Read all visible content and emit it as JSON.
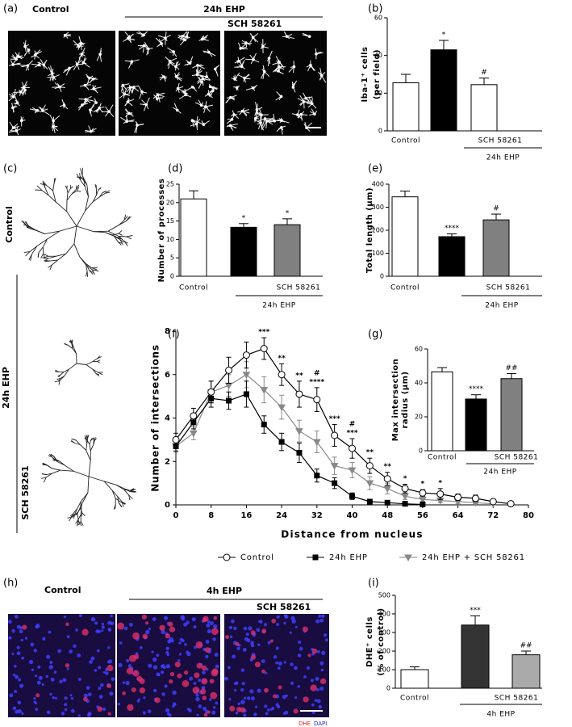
{
  "figure": {
    "a": {
      "label": "(a)",
      "control": "Control",
      "treatment": "24h EHP",
      "drug": "SCH 58261"
    },
    "c": {
      "label": "(c)",
      "control": "Control",
      "treatment": "24h EHP",
      "drug": "SCH 58261"
    },
    "h": {
      "label": "(h)",
      "control": "Control",
      "treatment": "4h EHP",
      "drug": "SCH 58261",
      "stain1": "DHE",
      "stain2": "DAPI"
    }
  },
  "chart_data": [
    {
      "type": "bar",
      "panel": "(b)",
      "y_label": [
        "Iba-1⁺ cells",
        "(per field)"
      ],
      "categories": [
        "Control",
        null,
        "SCH 58261"
      ],
      "group_label": "24h EHP",
      "values": [
        25.5,
        43,
        24.5
      ],
      "errors": [
        4.5,
        5,
        3.5
      ],
      "annotations": [
        null,
        "*",
        "#"
      ],
      "colors": [
        "#ffffff",
        "#000000",
        "#ffffff"
      ],
      "ylim": [
        0,
        60
      ],
      "yticks": [
        0,
        20,
        40,
        60
      ]
    },
    {
      "type": "bar",
      "panel": "(d)",
      "y_label": [
        "Number of processes"
      ],
      "categories": [
        "Control",
        null,
        "SCH 58261"
      ],
      "group_label": "24h EHP",
      "values": [
        21,
        13.3,
        14
      ],
      "errors": [
        2.2,
        1,
        1.6
      ],
      "annotations": [
        null,
        "*",
        "*"
      ],
      "colors": [
        "#ffffff",
        "#000000",
        "#808080"
      ],
      "ylim": [
        0,
        25
      ],
      "yticks": [
        0,
        5,
        10,
        15,
        20,
        25
      ]
    },
    {
      "type": "bar",
      "panel": "(e)",
      "y_label": [
        "Total length (μm)"
      ],
      "categories": [
        "Control",
        null,
        "SCH 58261"
      ],
      "group_label": "24h EHP",
      "values": [
        345,
        172,
        245
      ],
      "errors": [
        25,
        12,
        25
      ],
      "annotations": [
        null,
        "****",
        "#"
      ],
      "colors": [
        "#ffffff",
        "#000000",
        "#808080"
      ],
      "ylim": [
        0,
        400
      ],
      "yticks": [
        0,
        100,
        200,
        300,
        400
      ]
    },
    {
      "type": "line",
      "panel": "(f)",
      "y_label": "Number of intersections",
      "x_label": "Distance from nucleus",
      "x": [
        0,
        4,
        8,
        12,
        16,
        20,
        24,
        28,
        32,
        36,
        40,
        44,
        48,
        52,
        56,
        60,
        64,
        68,
        72,
        76
      ],
      "series": [
        {
          "name": "Control",
          "color": "#000000",
          "marker": "circle",
          "marker_fill": "#ffffff",
          "values": [
            3.0,
            4.1,
            5.2,
            6.2,
            6.9,
            7.2,
            6.0,
            5.1,
            4.85,
            3.2,
            2.6,
            1.8,
            1.2,
            0.75,
            0.55,
            0.5,
            0.35,
            0.3,
            0.15,
            0.05
          ],
          "errors": [
            0.3,
            0.35,
            0.5,
            0.6,
            0.6,
            0.5,
            0.5,
            0.6,
            0.55,
            0.5,
            0.45,
            0.35,
            0.3,
            0.2,
            0.15,
            0.25,
            0.15,
            0.15,
            0.1,
            0.05
          ]
        },
        {
          "name": "24h EHP",
          "color": "#000000",
          "marker": "square",
          "marker_fill": "#000000",
          "values": [
            2.7,
            3.8,
            4.9,
            4.8,
            5.1,
            3.7,
            2.9,
            2.4,
            1.35,
            1.0,
            0.4,
            0.15,
            0.1,
            0.05,
            0.02,
            null,
            null,
            null,
            null,
            null
          ],
          "errors": [
            0.25,
            0.3,
            0.4,
            0.4,
            0.6,
            0.4,
            0.4,
            0.45,
            0.3,
            0.25,
            0.15,
            0.1,
            0.05,
            0.05,
            0.02,
            null,
            null,
            null,
            null,
            null
          ]
        },
        {
          "name": "24h EHP + SCH 58261",
          "color": "#888888",
          "marker": "triangle-down",
          "marker_fill": "#888888",
          "values": [
            2.7,
            3.3,
            5.2,
            5.5,
            6.0,
            5.3,
            4.5,
            3.4,
            2.9,
            1.8,
            1.6,
            1.0,
            0.75,
            0.4,
            0.25,
            0.2,
            0.15,
            0.1,
            0.05,
            null
          ],
          "errors": [
            0.2,
            0.3,
            0.5,
            0.5,
            0.6,
            0.6,
            0.55,
            0.5,
            0.5,
            0.4,
            0.35,
            0.3,
            0.25,
            0.15,
            0.1,
            0.1,
            0.1,
            0.05,
            0.05,
            null
          ]
        }
      ],
      "annotations": [
        {
          "x": 20,
          "text": "***"
        },
        {
          "x": 24,
          "text": "**"
        },
        {
          "x": 28,
          "text": "**"
        },
        {
          "x": 32,
          "text": "****"
        },
        {
          "x": 32,
          "text": "#"
        },
        {
          "x": 36,
          "text": "***"
        },
        {
          "x": 40,
          "text": "***"
        },
        {
          "x": 40,
          "text": "#"
        },
        {
          "x": 44,
          "text": "**"
        },
        {
          "x": 48,
          "text": "**"
        },
        {
          "x": 52,
          "text": "*"
        },
        {
          "x": 56,
          "text": "*"
        },
        {
          "x": 60,
          "text": "*"
        }
      ],
      "xlim": [
        0,
        80
      ],
      "xticks": [
        0,
        8,
        16,
        24,
        32,
        40,
        48,
        56,
        64,
        72,
        80
      ],
      "ylim": [
        0,
        8
      ],
      "yticks": [
        0,
        2,
        4,
        6,
        8
      ]
    },
    {
      "type": "bar",
      "panel": "(g)",
      "y_label": [
        "Max intersection",
        "radius (μm)"
      ],
      "categories": [
        "Control",
        null,
        "SCH 58261"
      ],
      "group_label": "24h EHP",
      "values": [
        46.5,
        30.5,
        42.5
      ],
      "errors": [
        2.5,
        2.5,
        3
      ],
      "annotations": [
        null,
        "****",
        "##"
      ],
      "colors": [
        "#ffffff",
        "#000000",
        "#808080"
      ],
      "ylim": [
        0,
        60
      ],
      "yticks": [
        0,
        20,
        40,
        60
      ]
    },
    {
      "type": "bar",
      "panel": "(i)",
      "y_label": [
        "DHE⁺ cells",
        "(% of control)"
      ],
      "categories": [
        "Control",
        null,
        "SCH 58261"
      ],
      "group_label": "4h EHP",
      "values": [
        100,
        340,
        180
      ],
      "errors": [
        15,
        50,
        20
      ],
      "annotations": [
        null,
        "***",
        "##"
      ],
      "colors": [
        "#ffffff",
        "#333333",
        "#aaaaaa"
      ],
      "ylim": [
        0,
        500
      ],
      "yticks": [
        0,
        100,
        200,
        300,
        400,
        500
      ]
    }
  ]
}
